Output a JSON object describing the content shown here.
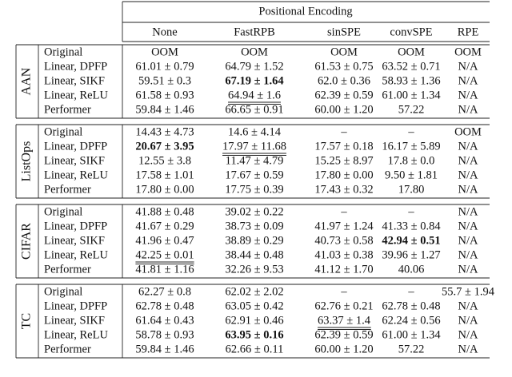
{
  "header": {
    "span_title": "Positional Encoding",
    "columns": [
      "None",
      "FastRPB",
      "sinSPE",
      "convSPE",
      "RPE"
    ]
  },
  "groups": [
    {
      "label": "AAN",
      "rows": [
        {
          "model": "Original",
          "cells": [
            "OOM",
            "OOM",
            "OOM",
            "OOM",
            "OOM"
          ]
        },
        {
          "model": "Linear, DPFP",
          "cells": [
            "61.01 ± 0.79",
            "64.79 ± 1.52",
            "61.53 ± 0.75",
            "63.52 ± 0.71",
            "N/A"
          ]
        },
        {
          "model": "Linear, SIKF",
          "cells": [
            "59.51 ± 0.3",
            "67.19 ± 1.64",
            "62.0 ± 0.36",
            "58.93 ± 1.36",
            "N/A"
          ]
        },
        {
          "model": "Linear, ReLU",
          "cells": [
            "61.58 ± 0.93",
            "64.94 ± 1.6",
            "62.39 ± 0.59",
            "61.00 ± 1.34",
            "N/A"
          ]
        },
        {
          "model": "Performer",
          "cells": [
            "59.84 ± 1.46",
            "66.65 ± 0.91",
            "60.00 ± 1.20",
            "57.22",
            "N/A"
          ]
        }
      ],
      "bold": [
        [
          2,
          1
        ]
      ],
      "double_underline": [
        [
          3,
          1
        ]
      ]
    },
    {
      "label": "ListOps",
      "rows": [
        {
          "model": "Original",
          "cells": [
            "14.43 ± 4.73",
            "14.6 ± 4.14",
            "–",
            "–",
            "OOM"
          ]
        },
        {
          "model": "Linear, DPFP",
          "cells": [
            "20.67 ± 3.95",
            "17.97 ± 11.68",
            "17.57 ± 0.18",
            "16.17 ± 5.89",
            "N/A"
          ]
        },
        {
          "model": "Linear, SIKF",
          "cells": [
            "12.55 ± 3.8",
            "11.47 ± 4.79",
            "15.25 ± 8.97",
            "17.8 ± 0.0",
            "N/A"
          ]
        },
        {
          "model": "Linear, ReLU",
          "cells": [
            "17.58 ± 1.01",
            "17.67 ± 0.59",
            "17.80 ± 0.00",
            "9.50 ± 1.81",
            "N/A"
          ]
        },
        {
          "model": "Performer",
          "cells": [
            "17.80 ± 0.00",
            "17.75 ± 0.39",
            "17.43 ± 0.32",
            "17.80",
            "N/A"
          ]
        }
      ],
      "bold": [
        [
          1,
          0
        ]
      ],
      "double_underline": [
        [
          1,
          1
        ]
      ]
    },
    {
      "label": "CIFAR",
      "rows": [
        {
          "model": "Original",
          "cells": [
            "41.88 ± 0.48",
            "39.02 ± 0.22",
            "–",
            "–",
            "N/A"
          ]
        },
        {
          "model": "Linear, DPFP",
          "cells": [
            "41.67 ± 0.29",
            "38.73 ± 0.09",
            "41.97 ± 1.24",
            "41.33 ± 0.84",
            "N/A"
          ]
        },
        {
          "model": "Linear, SIKF",
          "cells": [
            "41.96 ± 0.47",
            "38.89 ± 0.29",
            "40.73 ± 0.58",
            "42.94 ± 0.51",
            "N/A"
          ]
        },
        {
          "model": "Linear, ReLU",
          "cells": [
            "42.25 ± 0.01",
            "38.44 ± 0.48",
            "41.03 ± 0.38",
            "39.96 ± 1.27",
            "N/A"
          ]
        },
        {
          "model": "Performer",
          "cells": [
            "41.81 ± 1.16",
            "32.26 ± 9.53",
            "41.12 ± 1.70",
            "40.06",
            "N/A"
          ]
        }
      ],
      "bold": [
        [
          2,
          3
        ]
      ],
      "double_underline": [
        [
          3,
          0
        ]
      ]
    },
    {
      "label": "TC",
      "rows": [
        {
          "model": "Original",
          "cells": [
            "62.27 ± 0.8",
            "62.02 ± 2.02",
            "–",
            "–",
            "55.7 ± 1.94"
          ]
        },
        {
          "model": "Linear, DPFP",
          "cells": [
            "62.78 ± 0.48",
            "63.05 ± 0.42",
            "62.76 ± 0.21",
            "62.78 ± 0.48",
            "N/A"
          ]
        },
        {
          "model": "Linear, SIKF",
          "cells": [
            "61.64 ± 0.43",
            "62.91 ± 0.46",
            "63.37 ± 1.4",
            "62.24 ± 0.56",
            "N/A"
          ]
        },
        {
          "model": "Linear, ReLU",
          "cells": [
            "58.78 ± 0.93",
            "63.95 ± 0.16",
            "62.39 ± 0.59",
            "61.00 ± 1.34",
            "N/A"
          ]
        },
        {
          "model": "Performer",
          "cells": [
            "59.84 ± 1.46",
            "62.66 ± 0.11",
            "60.00 ± 1.20",
            "57.22",
            "N/A"
          ]
        }
      ],
      "bold": [
        [
          3,
          1
        ]
      ],
      "double_underline": [
        [
          2,
          2
        ]
      ]
    }
  ]
}
